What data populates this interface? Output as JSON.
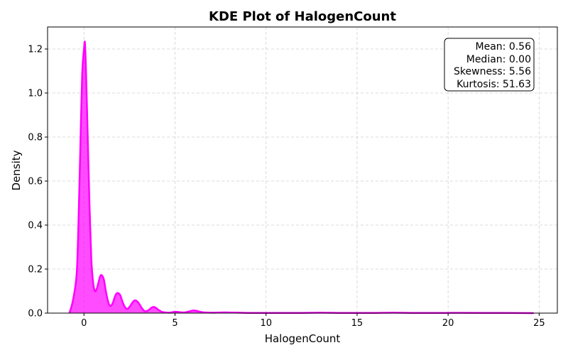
{
  "chart_data": {
    "type": "area",
    "title": "KDE Plot of HalogenCount",
    "xlabel": "HalogenCount",
    "ylabel": "Density",
    "xlim": [
      -2.0,
      26.0
    ],
    "ylim": [
      0.0,
      1.3
    ],
    "xticks": [
      0,
      5,
      10,
      15,
      20,
      25
    ],
    "yticks": [
      0.0,
      0.2,
      0.4,
      0.6,
      0.8,
      1.0,
      1.2
    ],
    "grid": true,
    "color": "#ff00ff",
    "series": [
      {
        "x": [
          -0.8,
          -0.6,
          -0.4,
          -0.3,
          -0.2,
          -0.1,
          0.0,
          0.05,
          0.1,
          0.2,
          0.3,
          0.4,
          0.5,
          0.6,
          0.7,
          0.8,
          0.9,
          1.0,
          1.1,
          1.2,
          1.3,
          1.4,
          1.5,
          1.6,
          1.7,
          1.8,
          1.9,
          2.0,
          2.1,
          2.2,
          2.3,
          2.4,
          2.5,
          2.6,
          2.7,
          2.8,
          2.9,
          3.0,
          3.1,
          3.2,
          3.3,
          3.4,
          3.5,
          3.6,
          3.7,
          3.8,
          3.9,
          4.0,
          4.1,
          4.2,
          4.3,
          4.5,
          4.7,
          5.0,
          5.2,
          5.5,
          5.8,
          6.0,
          6.2,
          6.5,
          7.0,
          7.5,
          8.0,
          8.5,
          9.0,
          10.0,
          12.0,
          13.0,
          14.0,
          16.0,
          17.0,
          18.0,
          20.0,
          22.0,
          24.7
        ],
        "y": [
          0.0,
          0.06,
          0.18,
          0.42,
          0.75,
          1.08,
          1.2,
          1.23,
          1.13,
          0.82,
          0.5,
          0.25,
          0.14,
          0.1,
          0.11,
          0.14,
          0.17,
          0.17,
          0.15,
          0.1,
          0.06,
          0.035,
          0.035,
          0.05,
          0.075,
          0.09,
          0.09,
          0.08,
          0.055,
          0.035,
          0.022,
          0.02,
          0.028,
          0.04,
          0.052,
          0.058,
          0.055,
          0.046,
          0.033,
          0.02,
          0.011,
          0.008,
          0.011,
          0.017,
          0.024,
          0.028,
          0.026,
          0.021,
          0.014,
          0.009,
          0.005,
          0.003,
          0.002,
          0.006,
          0.005,
          0.003,
          0.008,
          0.012,
          0.01,
          0.004,
          0.002,
          0.003,
          0.003,
          0.002,
          0.001,
          0.001,
          0.001,
          0.002,
          0.001,
          0.001,
          0.002,
          0.001,
          0.001,
          0.001,
          0.0
        ]
      }
    ],
    "annotations": [
      "Mean: 0.56",
      "Median: 0.00",
      "Skewness: 5.56",
      "Kurtosis: 51.63"
    ]
  }
}
